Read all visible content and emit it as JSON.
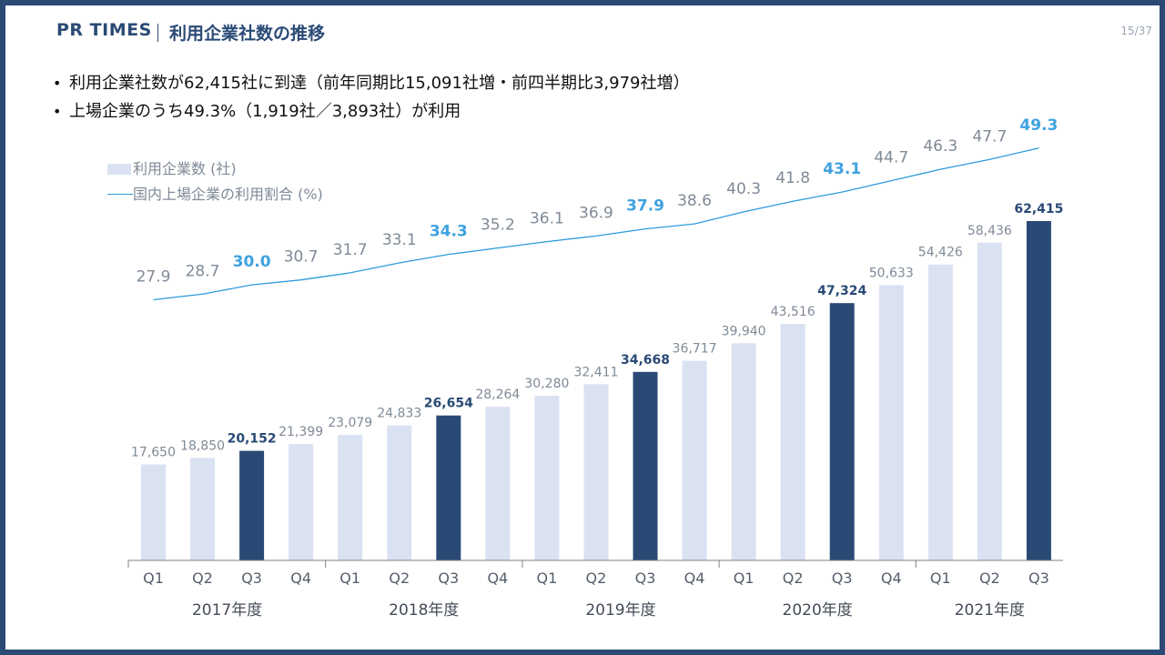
{
  "header": {
    "brand": "PR TIMES",
    "title": "利用企業社数の推移",
    "page": "15/37"
  },
  "bullets": [
    "利用企業社数が62,415社に到達（前年同期比15,091社増・前四半期比3,979社増）",
    "上場企業のうち49.3%（1,919社／3,893社）が利用"
  ],
  "colors": {
    "bar": "#dae2f2",
    "bar_highlight": "#2a4a75",
    "line": "#2e9bdc",
    "ratio_highlight": "#3fa2e0"
  },
  "chart_data": {
    "type": "bar",
    "categories": [
      "Q1",
      "Q2",
      "Q3",
      "Q4",
      "Q1",
      "Q2",
      "Q3",
      "Q4",
      "Q1",
      "Q2",
      "Q3",
      "Q4",
      "Q1",
      "Q2",
      "Q3",
      "Q4",
      "Q1",
      "Q2",
      "Q3"
    ],
    "year_groups": [
      {
        "label": "2017年度",
        "count": 4
      },
      {
        "label": "2018年度",
        "count": 4
      },
      {
        "label": "2019年度",
        "count": 4
      },
      {
        "label": "2020年度",
        "count": 4
      },
      {
        "label": "2021年度",
        "count": 3
      }
    ],
    "series": [
      {
        "name": "利用企業数 (社)",
        "type": "bar",
        "values": [
          17650,
          18850,
          20152,
          21399,
          23079,
          24833,
          26654,
          28264,
          30280,
          32411,
          34668,
          36717,
          39940,
          43516,
          47324,
          50633,
          54426,
          58436,
          62415
        ],
        "labels": [
          "17,650",
          "18,850",
          "20,152",
          "21,399",
          "23,079",
          "24,833",
          "26,654",
          "28,264",
          "30,280",
          "32,411",
          "34,668",
          "36,717",
          "39,940",
          "43,516",
          "47,324",
          "50,633",
          "54,426",
          "58,436",
          "62,415"
        ]
      },
      {
        "name": "国内上場企業の利用割合 (%)",
        "type": "line",
        "values": [
          27.9,
          28.7,
          30.0,
          30.7,
          31.7,
          33.1,
          34.3,
          35.2,
          36.1,
          36.9,
          37.9,
          38.6,
          40.3,
          41.8,
          43.1,
          44.7,
          46.3,
          47.7,
          49.3
        ],
        "labels": [
          "27.9",
          "28.7",
          "30.0",
          "30.7",
          "31.7",
          "33.1",
          "34.3",
          "35.2",
          "36.1",
          "36.9",
          "37.9",
          "38.6",
          "40.3",
          "41.8",
          "43.1",
          "44.7",
          "46.3",
          "47.7",
          "49.3"
        ]
      }
    ],
    "highlight_indices": [
      2,
      6,
      10,
      14,
      18
    ],
    "ylim": [
      0,
      62415
    ],
    "grid": false,
    "legend_position": "top-left"
  }
}
